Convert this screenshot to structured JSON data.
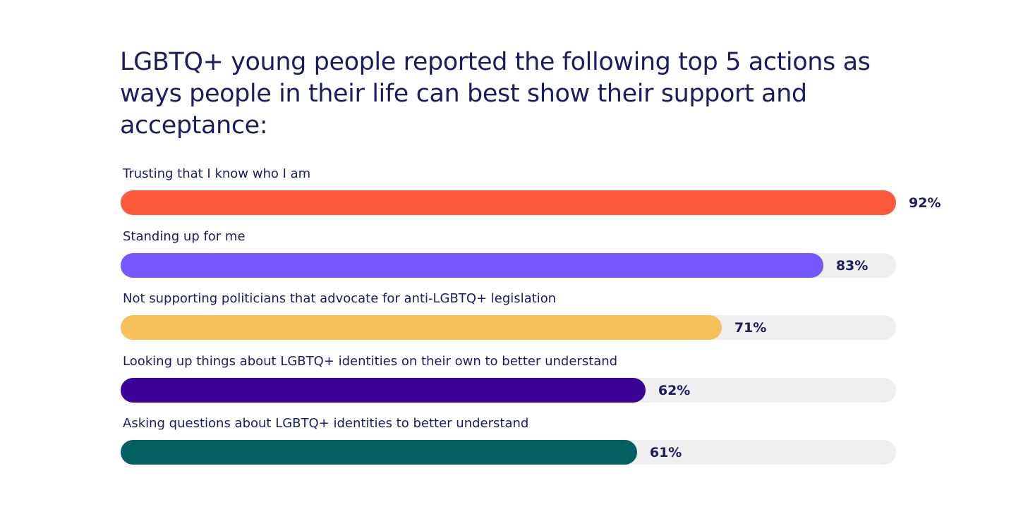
{
  "chart_data": {
    "type": "bar",
    "orientation": "horizontal",
    "title": "LGBTQ+ young people reported the following top 5 actions as ways people in their life can best show their support and acceptance:",
    "xlim": [
      0,
      100
    ],
    "categories": [
      "Trusting that I know who I am",
      "Standing up for me",
      "Not supporting politicians that advocate for anti-LGBTQ+ legislation",
      "Looking up things about LGBTQ+ identities on their own to better understand",
      "Asking questions about LGBTQ+ identities to better understand"
    ],
    "values": [
      92,
      83,
      71,
      62,
      61
    ],
    "value_labels": [
      "92%",
      "83%",
      "71%",
      "62%",
      "61%"
    ],
    "colors": [
      "#ff5a3c",
      "#7559ff",
      "#f8c05a",
      "#3d0298",
      "#045f63"
    ],
    "track_color": "#efefef",
    "grid": false,
    "legend": "none"
  }
}
